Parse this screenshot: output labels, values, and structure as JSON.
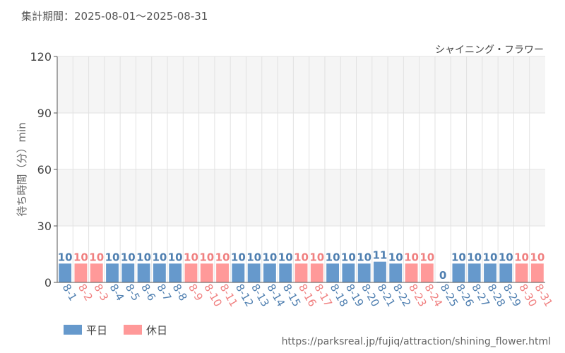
{
  "header": {
    "period_label": "集計期間：2025-08-01～2025-08-31"
  },
  "footer": {
    "source_url": "https://parksreal.jp/fujiq/attraction/shining_flower.html"
  },
  "colors": {
    "weekday": "#6699cc",
    "holiday": "#ff9999",
    "weekday_text": "#4f7fb0",
    "holiday_text": "#f08080"
  },
  "chart_data": {
    "type": "bar",
    "title": "シャイニング・フラワー",
    "xlabel": "",
    "ylabel": "待ち時間（分）min",
    "ylim": [
      0,
      120
    ],
    "yticks": [
      0,
      30,
      60,
      90,
      120
    ],
    "grid": true,
    "legend_position": "bottom-left",
    "categories": [
      "8-1",
      "8-2",
      "8-3",
      "8-4",
      "8-5",
      "8-6",
      "8-7",
      "8-8",
      "8-9",
      "8-10",
      "8-11",
      "8-12",
      "8-13",
      "8-14",
      "8-15",
      "8-16",
      "8-17",
      "8-18",
      "8-19",
      "8-20",
      "8-21",
      "8-22",
      "8-23",
      "8-24",
      "8-25",
      "8-26",
      "8-27",
      "8-28",
      "8-29",
      "8-30",
      "8-31"
    ],
    "values": [
      10,
      10,
      10,
      10,
      10,
      10,
      10,
      10,
      10,
      10,
      10,
      10,
      10,
      10,
      10,
      10,
      10,
      10,
      10,
      10,
      11,
      10,
      10,
      10,
      0,
      10,
      10,
      10,
      10,
      10,
      10
    ],
    "day_types": [
      "weekday",
      "holiday",
      "holiday",
      "weekday",
      "weekday",
      "weekday",
      "weekday",
      "weekday",
      "holiday",
      "holiday",
      "holiday",
      "weekday",
      "weekday",
      "weekday",
      "weekday",
      "holiday",
      "holiday",
      "weekday",
      "weekday",
      "weekday",
      "weekday",
      "weekday",
      "holiday",
      "holiday",
      "weekday",
      "weekday",
      "weekday",
      "weekday",
      "weekday",
      "holiday",
      "holiday"
    ],
    "legend": [
      {
        "key": "weekday",
        "label": "平日"
      },
      {
        "key": "holiday",
        "label": "休日"
      }
    ]
  }
}
